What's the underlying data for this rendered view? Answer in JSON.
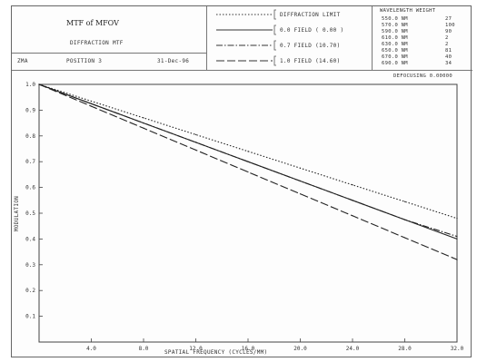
{
  "header": {
    "title": "MTF of MFOV",
    "subtitle": "DIFFRACTION MTF",
    "info_left": "ZMA",
    "info_mid": "POSITION 3",
    "info_date": "31-Dec-96",
    "wavelength_header": "WAVELENGTH   WEIGHT",
    "wavelengths": [
      {
        "wl": "550.0 NM",
        "wt": "27"
      },
      {
        "wl": "570.0 NM",
        "wt": "100"
      },
      {
        "wl": "590.0 NM",
        "wt": "90"
      },
      {
        "wl": "610.0 NM",
        "wt": "2"
      },
      {
        "wl": "630.0 NM",
        "wt": "2"
      },
      {
        "wl": "650.0 NM",
        "wt": "81"
      },
      {
        "wl": "670.0 NM",
        "wt": "40"
      },
      {
        "wl": "690.0 NM",
        "wt": "34"
      }
    ],
    "defocus": "DEFOCUSING  0.00000"
  },
  "chart_data": {
    "type": "line",
    "xlabel": "SPATIAL FREQUENCY (CYCLES/MM)",
    "ylabel": "MODULATION",
    "xlim": [
      0,
      32
    ],
    "ylim": [
      0,
      1.0
    ],
    "x_ticks": [
      "4.0",
      "8.0",
      "12.0",
      "16.0",
      "20.0",
      "24.0",
      "28.0",
      "32.0"
    ],
    "y_ticks": [
      "1.0",
      "0.9",
      "0.8",
      "0.7",
      "0.6",
      "0.5",
      "0.4",
      "0.3",
      "0.2",
      "0.1"
    ],
    "x": [
      0,
      4,
      8,
      12,
      16,
      20,
      24,
      28,
      32
    ],
    "series": [
      {
        "name": "DIFFRACTION LIMIT",
        "style": "dotted",
        "values": [
          1.0,
          0.935,
          0.87,
          0.805,
          0.74,
          0.675,
          0.61,
          0.545,
          0.48
        ]
      },
      {
        "name": "0.0 FIELD ( 0.00 )",
        "style": "solid",
        "values": [
          1.0,
          0.925,
          0.85,
          0.775,
          0.7,
          0.625,
          0.55,
          0.475,
          0.4
        ]
      },
      {
        "name": "0.7 FIELD (10.70)",
        "style": "dashdot",
        "values": [
          1.0,
          0.925,
          0.85,
          0.775,
          0.7,
          0.625,
          0.55,
          0.475,
          0.41
        ]
      },
      {
        "name": "1.0 FIELD (14.60)",
        "style": "longdash",
        "values": [
          1.0,
          0.915,
          0.83,
          0.745,
          0.66,
          0.575,
          0.49,
          0.405,
          0.32
        ]
      }
    ]
  }
}
